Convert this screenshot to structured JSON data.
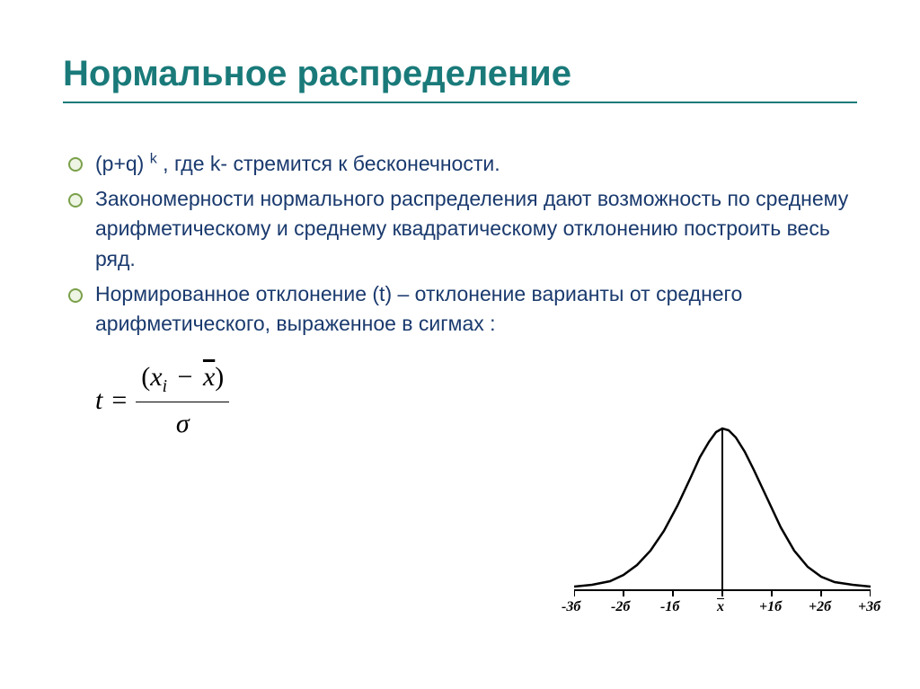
{
  "title": "Нормальное распределение",
  "bullets": [
    {
      "html": "(p+q) <span class='sup'>k</span> , где k- стремится к бесконечности."
    },
    {
      "html": " Закономерности нормального распределения дают возможность по среднему арифметическому и среднему квадратическому отклонению построить весь ряд."
    },
    {
      "html": "Нормированное отклонение (t) – отклонение варианты от среднего арифметического, выраженное в сигмах :"
    }
  ],
  "formula": {
    "lhs": "t",
    "eq": "=",
    "num_open": "(",
    "num_xi": "x",
    "num_xi_sub": "i",
    "num_minus": "−",
    "num_xbar": "x",
    "num_close": ")",
    "den": "σ"
  },
  "chart": {
    "type": "line",
    "curve_color": "#000000",
    "axis_color": "#000000",
    "background": "#ffffff",
    "line_width": 2.5,
    "x_ticks": [
      "-3б",
      "-2б",
      "-1б",
      "x̄",
      "+1б",
      "+2б",
      "+3б"
    ],
    "x_tick_positions": [
      0,
      55,
      110,
      165,
      220,
      275,
      330
    ],
    "mean_line_x": 165,
    "baseline_y": 190,
    "curve_points": [
      [
        0,
        186
      ],
      [
        20,
        184
      ],
      [
        40,
        180
      ],
      [
        55,
        173
      ],
      [
        70,
        162
      ],
      [
        85,
        146
      ],
      [
        100,
        124
      ],
      [
        115,
        96
      ],
      [
        130,
        64
      ],
      [
        140,
        42
      ],
      [
        150,
        25
      ],
      [
        158,
        14
      ],
      [
        165,
        10
      ],
      [
        172,
        12
      ],
      [
        180,
        20
      ],
      [
        190,
        36
      ],
      [
        200,
        56
      ],
      [
        215,
        88
      ],
      [
        230,
        120
      ],
      [
        245,
        146
      ],
      [
        260,
        164
      ],
      [
        275,
        175
      ],
      [
        290,
        181
      ],
      [
        310,
        184
      ],
      [
        330,
        186
      ]
    ]
  },
  "colors": {
    "title": "#1a7a7a",
    "body_text": "#1a3a6e",
    "bullet_ring": "#7aa04a",
    "underline": "#1a7a7a"
  },
  "typography": {
    "title_fontsize": 40,
    "body_fontsize": 23,
    "formula_fontsize": 30,
    "axis_label_fontsize": 16,
    "font_family_body": "Arial",
    "font_family_math": "Times New Roman"
  }
}
